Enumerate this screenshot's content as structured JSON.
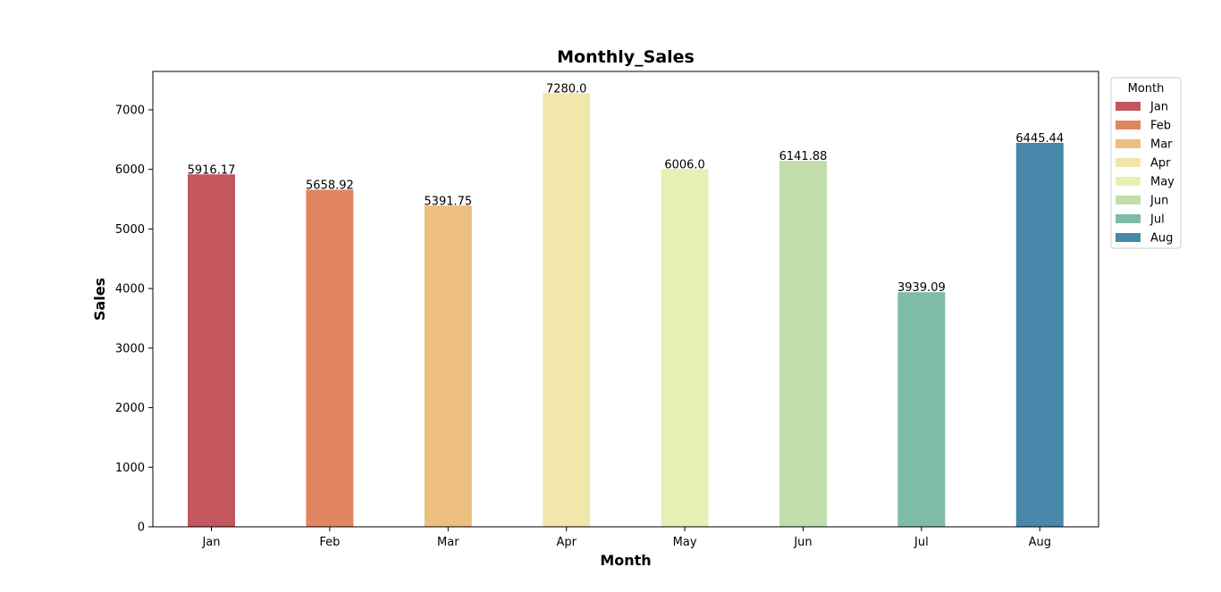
{
  "chart_data": {
    "type": "bar",
    "title": "Monthly_Sales",
    "xlabel": "Month",
    "ylabel": "Sales",
    "categories": [
      "Jan",
      "Feb",
      "Mar",
      "Apr",
      "May",
      "Jun",
      "Jul",
      "Aug"
    ],
    "values": [
      5916.17,
      5658.92,
      5391.75,
      7280.0,
      6006.0,
      6141.88,
      3939.09,
      6445.44
    ],
    "data_labels": [
      "5916.17",
      "5658.92",
      "5391.75",
      "7280.0",
      "6006.0",
      "6141.88",
      "3939.09",
      "6445.44"
    ],
    "colors": [
      "#c4565e",
      "#e18560",
      "#ecbe80",
      "#f1e7ab",
      "#e8efb4",
      "#c1ddaa",
      "#7fbca6",
      "#4888aa"
    ],
    "ylim": [
      0,
      7644
    ],
    "yticks": [
      0,
      1000,
      2000,
      3000,
      4000,
      5000,
      6000,
      7000
    ],
    "grid": false,
    "legend": {
      "title": "Month",
      "placement": "outside-top-right",
      "entries": [
        "Jan",
        "Feb",
        "Mar",
        "Apr",
        "May",
        "Jun",
        "Jul",
        "Aug"
      ]
    }
  }
}
